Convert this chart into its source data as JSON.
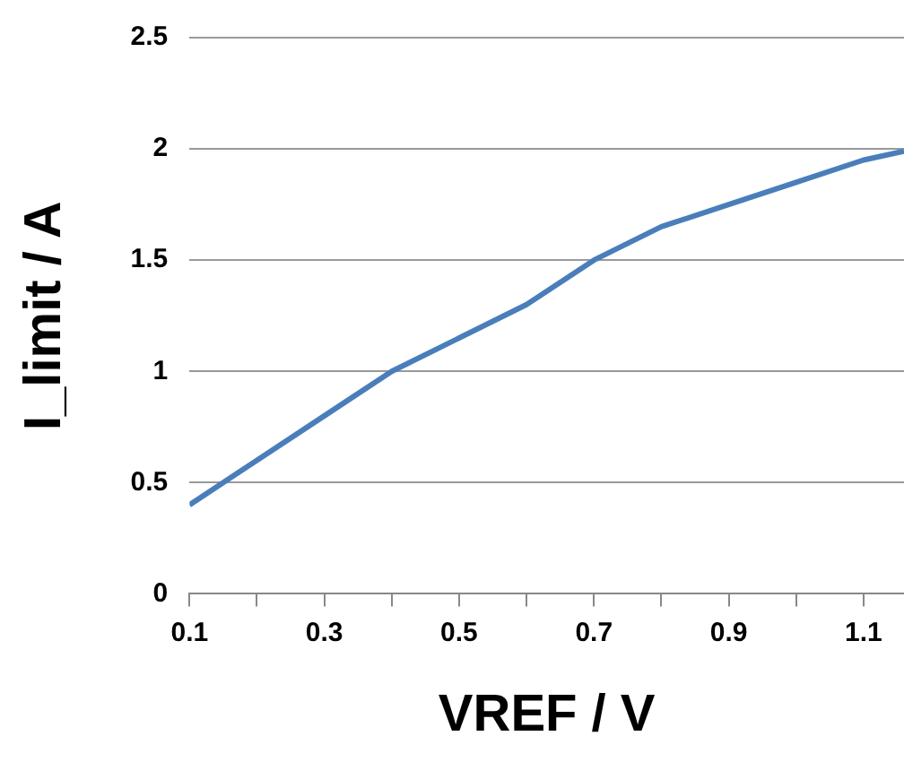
{
  "chart_data": {
    "type": "line",
    "xlabel": "VREF / V",
    "ylabel": "I_limit / A",
    "x": [
      0.1,
      0.2,
      0.3,
      0.4,
      0.5,
      0.6,
      0.7,
      0.8,
      0.9,
      1.0,
      1.1,
      1.16
    ],
    "series": [
      {
        "color": "#4a7ebb",
        "values": [
          0.4,
          0.6,
          0.8,
          1.0,
          1.15,
          1.3,
          1.5,
          1.65,
          1.75,
          1.85,
          1.95,
          1.99
        ]
      }
    ],
    "xlim": [
      0.1,
      1.16
    ],
    "xticks": [
      0.1,
      {
        "value": 0.2,
        "label": null
      },
      0.3,
      {
        "value": 0.4,
        "label": null
      },
      0.5,
      {
        "value": 0.6,
        "label": null
      },
      0.7,
      {
        "value": 0.8,
        "label": null
      },
      0.9,
      {
        "value": 1.0,
        "label": null
      },
      1.1
    ],
    "ylim": [
      0,
      2.5
    ],
    "yticks": [
      0,
      0.5,
      1,
      1.5,
      2,
      2.5
    ],
    "grid": "y",
    "legend": false,
    "marker": "none",
    "line_style": "solid"
  }
}
